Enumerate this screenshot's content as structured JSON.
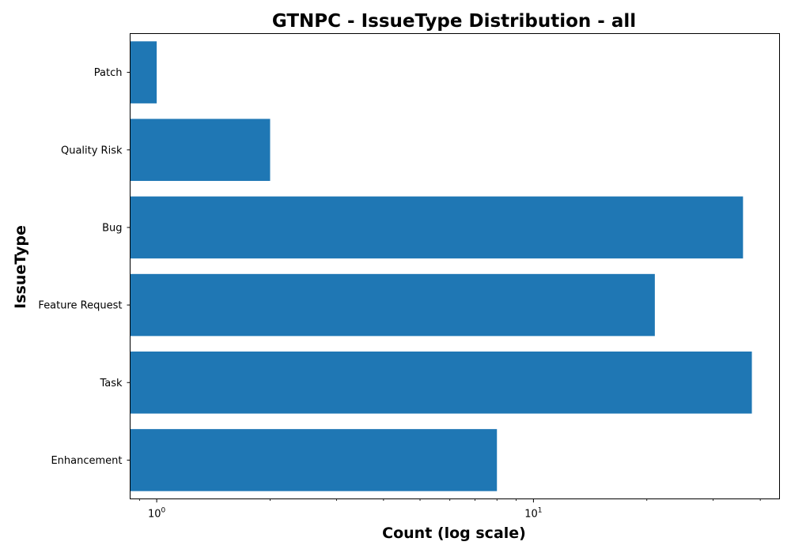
{
  "chart_data": {
    "type": "bar",
    "orientation": "horizontal",
    "title": "GTNPC - IssueType Distribution - all",
    "xlabel": "Count (log scale)",
    "ylabel": "IssueType",
    "x_scale": "log",
    "xlim": [
      0.85,
      45
    ],
    "categories": [
      "Enhancement",
      "Task",
      "Feature Request",
      "Bug",
      "Quality Risk",
      "Patch"
    ],
    "values": [
      8,
      38,
      21,
      36,
      2,
      1
    ],
    "x_tick_labels": [
      {
        "base": "10",
        "exp": "0",
        "value": 1
      },
      {
        "base": "10",
        "exp": "1",
        "value": 10
      }
    ],
    "bar_color": "#1f77b4",
    "grid": false
  }
}
